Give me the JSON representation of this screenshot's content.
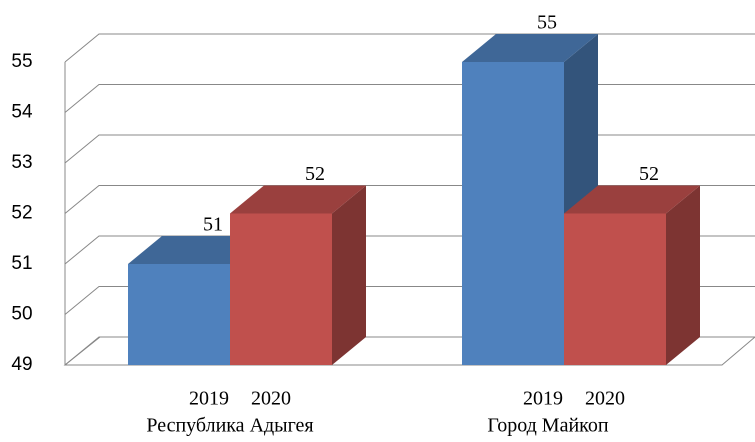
{
  "chart_data": {
    "type": "bar3d",
    "categories": [
      "Республика Адыгея",
      "Город Майкоп"
    ],
    "series": [
      {
        "name": "2019",
        "color": "#4f81bd",
        "values": [
          51,
          55
        ]
      },
      {
        "name": "2020",
        "color": "#c0504d",
        "values": [
          52,
          52
        ]
      }
    ],
    "ylim": [
      49,
      55
    ],
    "yticks": [
      49,
      50,
      51,
      52,
      53,
      54,
      55
    ],
    "grid": true
  }
}
